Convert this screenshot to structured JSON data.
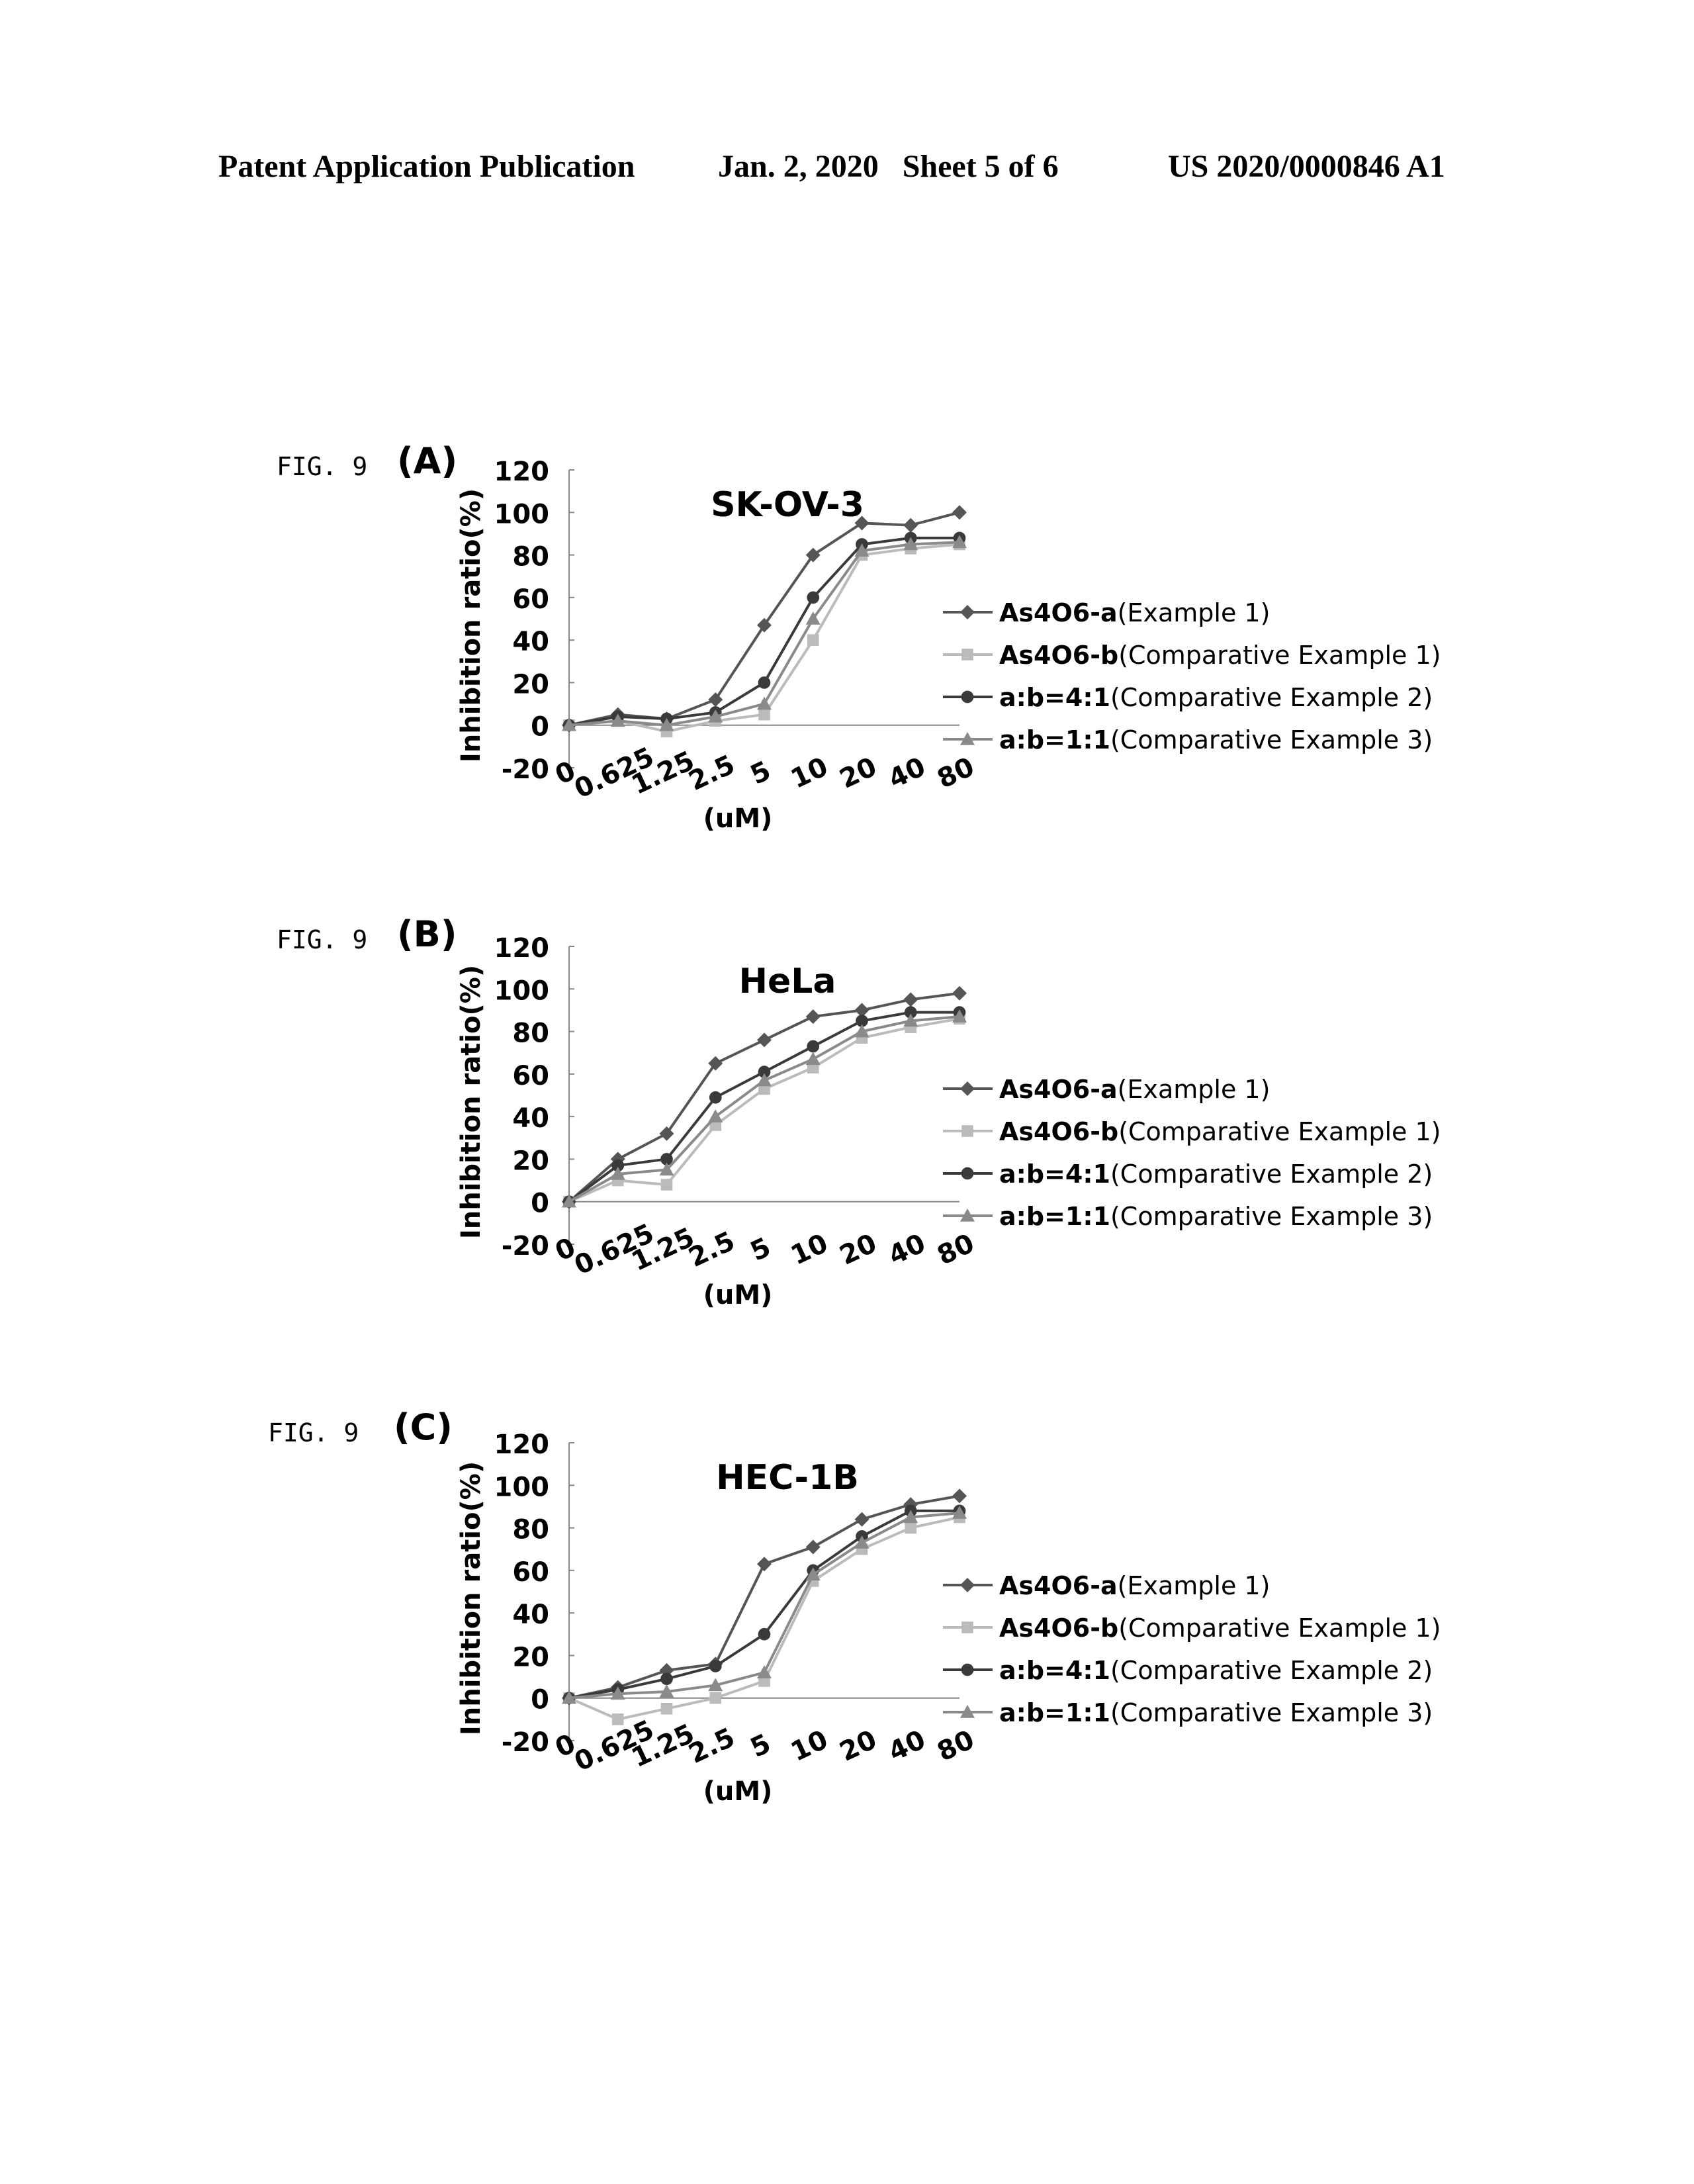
{
  "header": {
    "publication": "Patent Application Publication",
    "date_sheet": "Jan. 2, 2020   Sheet 5 of 6",
    "patent_number": "US 2020/0000846 A1"
  },
  "figures": [
    {
      "fig_label": "FIG. 9",
      "panel": "(A)"
    },
    {
      "fig_label": "FIG. 9",
      "panel": "(B)"
    },
    {
      "fig_label": "FIG. 9",
      "panel": "(C)"
    }
  ],
  "colors": {
    "series": [
      "#555555",
      "#bbbbbb",
      "#3a3a3a",
      "#8a8a8a"
    ],
    "axis": "#888888"
  },
  "chart_data": [
    {
      "type": "line",
      "title": "SK-OV-3",
      "xlabel": "(uM)",
      "ylabel": "Inhibition ratio(%)",
      "categories": [
        "0",
        "0.625",
        "1.25",
        "2.5",
        "5",
        "10",
        "20",
        "40",
        "80"
      ],
      "yticks": [
        "120",
        "100",
        "80",
        "60",
        "40",
        "20",
        "0",
        "-20"
      ],
      "ylim": [
        -20,
        120
      ],
      "legend_position": "right",
      "series": [
        {
          "name": "As4O6-a",
          "label_suffix": "(Example 1)",
          "marker": "diamond",
          "values": [
            0,
            5,
            3,
            12,
            47,
            80,
            95,
            94,
            100
          ]
        },
        {
          "name": "As4O6-b",
          "label_suffix": "(Comparative Example 1)",
          "marker": "square",
          "values": [
            0,
            2,
            -3,
            2,
            5,
            40,
            80,
            83,
            85
          ]
        },
        {
          "name": "a:b=4:1",
          "label_suffix": "(Comparative Example 2)",
          "marker": "circle",
          "values": [
            0,
            4,
            3,
            6,
            20,
            60,
            85,
            88,
            88
          ]
        },
        {
          "name": "a:b=1:1",
          "label_suffix": "(Comparative Example 3)",
          "marker": "triangle",
          "values": [
            0,
            2,
            0,
            4,
            10,
            50,
            82,
            85,
            86
          ]
        }
      ]
    },
    {
      "type": "line",
      "title": "HeLa",
      "xlabel": "(uM)",
      "ylabel": "Inhibition ratio(%)",
      "categories": [
        "0",
        "0.625",
        "1.25",
        "2.5",
        "5",
        "10",
        "20",
        "40",
        "80"
      ],
      "yticks": [
        "120",
        "100",
        "80",
        "60",
        "40",
        "20",
        "0",
        "-20"
      ],
      "ylim": [
        -20,
        120
      ],
      "legend_position": "right",
      "series": [
        {
          "name": "As4O6-a",
          "label_suffix": "(Example 1)",
          "marker": "diamond",
          "values": [
            0,
            20,
            32,
            65,
            76,
            87,
            90,
            95,
            98
          ]
        },
        {
          "name": "As4O6-b",
          "label_suffix": "(Comparative Example 1)",
          "marker": "square",
          "values": [
            0,
            10,
            8,
            36,
            53,
            63,
            77,
            82,
            86
          ]
        },
        {
          "name": "a:b=4:1",
          "label_suffix": "(Comparative Example 2)",
          "marker": "circle",
          "values": [
            0,
            17,
            20,
            49,
            61,
            73,
            85,
            89,
            89
          ]
        },
        {
          "name": "a:b=1:1",
          "label_suffix": "(Comparative Example 3)",
          "marker": "triangle",
          "values": [
            0,
            13,
            15,
            40,
            57,
            67,
            80,
            85,
            87
          ]
        }
      ]
    },
    {
      "type": "line",
      "title": "HEC-1B",
      "xlabel": "(uM)",
      "ylabel": "Inhibition ratio(%)",
      "categories": [
        "0",
        "0.625",
        "1.25",
        "2.5",
        "5",
        "10",
        "20",
        "40",
        "80"
      ],
      "yticks": [
        "120",
        "100",
        "80",
        "60",
        "40",
        "20",
        "0",
        "-20"
      ],
      "ylim": [
        -20,
        120
      ],
      "legend_position": "right",
      "series": [
        {
          "name": "As4O6-a",
          "label_suffix": "(Example 1)",
          "marker": "diamond",
          "values": [
            0,
            5,
            13,
            16,
            63,
            71,
            84,
            91,
            95
          ]
        },
        {
          "name": "As4O6-b",
          "label_suffix": "(Comparative Example 1)",
          "marker": "square",
          "values": [
            0,
            -10,
            -5,
            0,
            8,
            55,
            70,
            80,
            85
          ]
        },
        {
          "name": "a:b=4:1",
          "label_suffix": "(Comparative Example 2)",
          "marker": "circle",
          "values": [
            0,
            4,
            9,
            15,
            30,
            60,
            76,
            88,
            88
          ]
        },
        {
          "name": "a:b=1:1",
          "label_suffix": "(Comparative Example 3)",
          "marker": "triangle",
          "values": [
            0,
            2,
            3,
            6,
            12,
            58,
            73,
            85,
            87
          ]
        }
      ]
    }
  ]
}
